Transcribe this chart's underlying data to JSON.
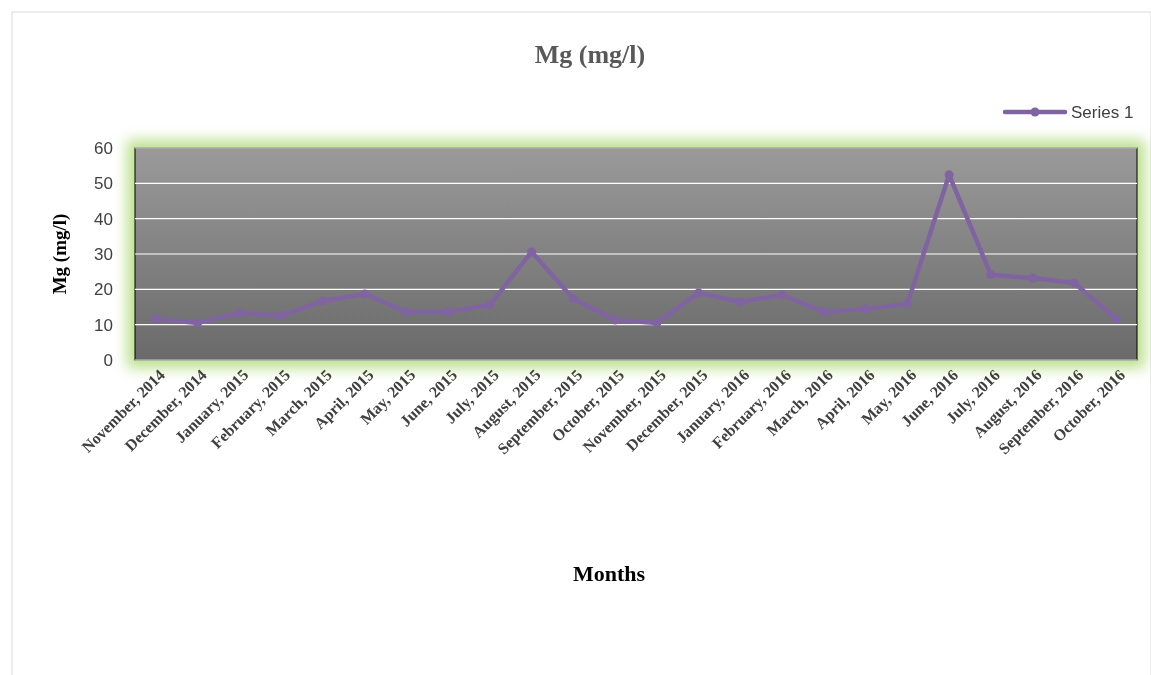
{
  "chart_data": {
    "type": "line",
    "title": "Mg (mg/l)",
    "xlabel": "Months",
    "ylabel": "Mg (mg/l)",
    "categories": [
      "November, 2014",
      "December, 2014",
      "January, 2015",
      "February, 2015",
      "March, 2015",
      "April, 2015",
      "May, 2015",
      "June, 2015",
      "July, 2015",
      "August, 2015",
      "September, 2015",
      "October, 2015",
      "November, 2015",
      "December, 2015",
      "January, 2016",
      "February, 2016",
      "March, 2016",
      "April, 2016",
      "May, 2016",
      "June, 2016",
      "July, 2016",
      "August, 2016",
      "September, 2016",
      "October, 2016"
    ],
    "series": [
      {
        "name": "Series 1",
        "color": "#8064a2",
        "values": [
          11.6,
          10.5,
          13.3,
          12.5,
          16.7,
          18.7,
          13.6,
          13.6,
          15.6,
          30.6,
          17.3,
          11.3,
          10.5,
          19,
          16.4,
          18.4,
          13.6,
          14.4,
          15.9,
          52.4,
          24.1,
          23.2,
          21.8,
          11.6
        ]
      }
    ],
    "ylim": [
      0,
      60
    ],
    "yticks": [
      0,
      10,
      20,
      30,
      40,
      50,
      60
    ],
    "grid": "y",
    "legend": "top right",
    "marker": "circle",
    "line_style": "solid"
  }
}
